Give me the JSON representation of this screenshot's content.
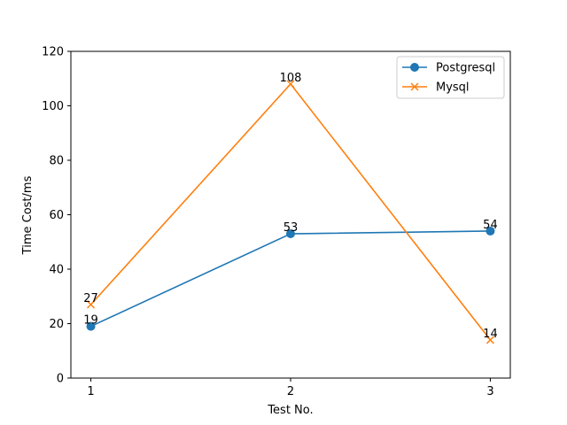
{
  "chart_data": {
    "type": "line",
    "title": "",
    "xlabel": "Test No.",
    "ylabel": "Time Cost/ms",
    "x": [
      1,
      2,
      3
    ],
    "x_tick_labels": [
      "1",
      "2",
      "3"
    ],
    "ylim": [
      0,
      120
    ],
    "y_ticks": [
      0,
      20,
      40,
      60,
      80,
      100,
      120
    ],
    "grid": false,
    "legend_position": "top-right",
    "series": [
      {
        "name": "Postgresql",
        "values": [
          19,
          53,
          54
        ],
        "color": "#1f77b4",
        "marker": "circle"
      },
      {
        "name": "Mysql",
        "values": [
          27,
          108,
          14
        ],
        "color": "#ff7f0e",
        "marker": "x"
      }
    ]
  }
}
